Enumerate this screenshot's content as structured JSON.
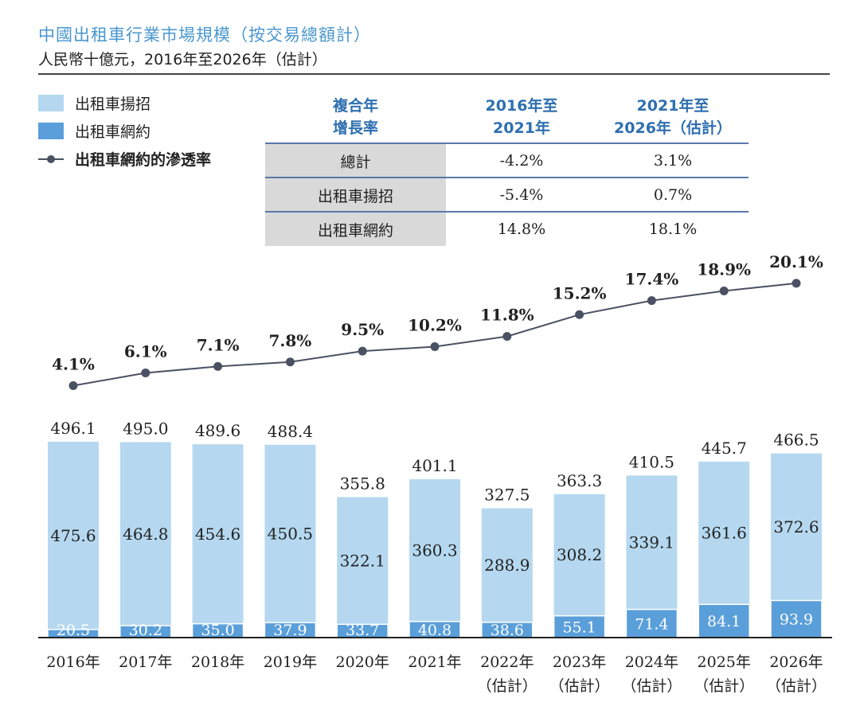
{
  "header": {
    "title": "中國出租車行業市場規模（按交易總額計）",
    "subtitle": "人民幣十億元，2016年至2026年（估計）"
  },
  "legend": {
    "items": [
      {
        "label": "出租車揚招",
        "color": "#b5d8f0"
      },
      {
        "label": "出租車網約",
        "color": "#5a9fd9"
      },
      {
        "label": "出租車網約的滲透率",
        "color": "#4a5163"
      }
    ]
  },
  "cagr_table": {
    "header": [
      "複合年",
      "增長率"
    ],
    "col1": [
      "2016年至",
      "2021年"
    ],
    "col2": [
      "2021年至",
      "2026年（估計）"
    ],
    "rows": [
      {
        "label": "總計",
        "v1": "-4.2%",
        "v2": "3.1%"
      },
      {
        "label": "出租車揚招",
        "v1": "-5.4%",
        "v2": "0.7%"
      },
      {
        "label": "出租車網約",
        "v1": "14.8%",
        "v2": "18.1%"
      }
    ]
  },
  "chart_data": {
    "type": "bar",
    "stacked": true,
    "categories": [
      [
        "2016年"
      ],
      [
        "2017年"
      ],
      [
        "2018年"
      ],
      [
        "2019年"
      ],
      [
        "2020年"
      ],
      [
        "2021年"
      ],
      [
        "2022年",
        "（估計）"
      ],
      [
        "2023年",
        "（估計）"
      ],
      [
        "2024年",
        "（估計）"
      ],
      [
        "2025年",
        "（估計）"
      ],
      [
        "2026年",
        "（估計）"
      ]
    ],
    "series": [
      {
        "name": "出租車網約",
        "values": [
          20.5,
          30.2,
          35.0,
          37.9,
          33.7,
          40.8,
          38.6,
          55.1,
          71.4,
          84.1,
          93.9
        ],
        "labels": [
          "20.5",
          "30.2",
          "35.0",
          "37.9",
          "33.7",
          "40.8",
          "38.6",
          "55.1",
          "71.4",
          "84.1",
          "93.9"
        ],
        "color": "#5a9fd9"
      },
      {
        "name": "出租車揚招",
        "values": [
          475.6,
          464.8,
          454.6,
          450.5,
          322.1,
          360.3,
          288.9,
          308.2,
          339.1,
          361.6,
          372.6
        ],
        "labels": [
          "475.6",
          "464.8",
          "454.6",
          "450.5",
          "322.1",
          "360.3",
          "288.9",
          "308.2",
          "339.1",
          "361.6",
          "372.6"
        ],
        "color": "#b5d8f0"
      }
    ],
    "totals": [
      496.1,
      495.0,
      489.6,
      488.4,
      355.8,
      401.1,
      327.5,
      363.3,
      410.5,
      445.7,
      466.5
    ],
    "total_labels": [
      "496.1",
      "495.0",
      "489.6",
      "488.4",
      "355.8",
      "401.1",
      "327.5",
      "363.3",
      "410.5",
      "445.7",
      "466.5"
    ],
    "line": {
      "name": "出租車網約的滲透率",
      "values": [
        4.1,
        6.1,
        7.1,
        7.8,
        9.5,
        10.2,
        11.8,
        15.2,
        17.4,
        18.9,
        20.1
      ],
      "labels": [
        "4.1%",
        "6.1%",
        "7.1%",
        "7.8%",
        "9.5%",
        "10.2%",
        "11.8%",
        "15.2%",
        "17.4%",
        "18.9%",
        "20.1%"
      ],
      "color": "#4a5163"
    },
    "title": "中國出租車行業市場規模（按交易總額計）",
    "ylabel": "",
    "xlabel": ""
  }
}
